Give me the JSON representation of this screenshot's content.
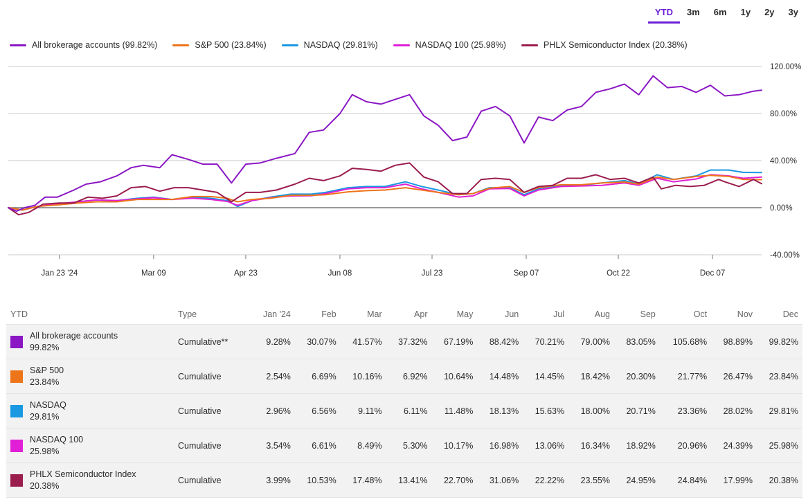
{
  "ranges": [
    "YTD",
    "3m",
    "6m",
    "1y",
    "2y",
    "3y"
  ],
  "active_range": "YTD",
  "legend": [
    {
      "label": "All brokerage accounts (99.82%)",
      "color": "#8b17c4"
    },
    {
      "label": "S&P 500 (23.84%)",
      "color": "#ee7419"
    },
    {
      "label": "NASDAQ (29.81%)",
      "color": "#1a98e2"
    },
    {
      "label": "NASDAQ 100 (25.98%)",
      "color": "#e11fd6"
    },
    {
      "label": "PHLX Semiconductor Index (20.38%)",
      "color": "#9b1d4e"
    }
  ],
  "chart_data": {
    "type": "line",
    "y_axis": {
      "min": -40,
      "max": 120,
      "ticks": [
        "120.00%",
        "80.00%",
        "40.00%",
        "0.00%",
        "-40.00%"
      ],
      "tick_values": [
        120,
        80,
        40,
        0,
        -40
      ]
    },
    "x_ticks": [
      "Jan 23 '24",
      "Mar 09",
      "Apr 23",
      "Jun 08",
      "Jul 23",
      "Sep 07",
      "Oct 22",
      "Dec 07"
    ],
    "x_tick_dates": [
      "2024-01-23",
      "2024-03-09",
      "2024-04-23",
      "2024-06-08",
      "2024-07-23",
      "2024-09-07",
      "2024-10-22",
      "2024-12-07"
    ],
    "x_range": [
      "2023-12-29",
      "2024-12-31"
    ],
    "grid": true,
    "legend_position": "top-left",
    "series": [
      {
        "name": "All brokerage accounts",
        "color": "#8b17c4",
        "points": [
          [
            "2023-12-29",
            0
          ],
          [
            "2024-01-02",
            -3
          ],
          [
            "2024-01-06",
            0
          ],
          [
            "2024-01-11",
            2
          ],
          [
            "2024-01-16",
            9
          ],
          [
            "2024-01-22",
            9
          ],
          [
            "2024-01-30",
            15
          ],
          [
            "2024-02-05",
            20
          ],
          [
            "2024-02-12",
            22
          ],
          [
            "2024-02-20",
            27
          ],
          [
            "2024-02-27",
            34
          ],
          [
            "2024-03-04",
            36
          ],
          [
            "2024-03-12",
            34
          ],
          [
            "2024-03-18",
            45
          ],
          [
            "2024-03-26",
            41
          ],
          [
            "2024-04-02",
            37
          ],
          [
            "2024-04-09",
            37
          ],
          [
            "2024-04-16",
            21
          ],
          [
            "2024-04-23",
            37
          ],
          [
            "2024-04-30",
            38
          ],
          [
            "2024-05-08",
            42
          ],
          [
            "2024-05-17",
            46
          ],
          [
            "2024-05-24",
            64
          ],
          [
            "2024-05-31",
            66
          ],
          [
            "2024-06-08",
            80
          ],
          [
            "2024-06-14",
            96
          ],
          [
            "2024-06-21",
            90
          ],
          [
            "2024-06-28",
            88
          ],
          [
            "2024-07-05",
            92
          ],
          [
            "2024-07-12",
            96
          ],
          [
            "2024-07-19",
            78
          ],
          [
            "2024-07-26",
            70
          ],
          [
            "2024-08-02",
            57
          ],
          [
            "2024-08-09",
            60
          ],
          [
            "2024-08-16",
            82
          ],
          [
            "2024-08-23",
            86
          ],
          [
            "2024-08-30",
            78
          ],
          [
            "2024-09-06",
            55
          ],
          [
            "2024-09-13",
            77
          ],
          [
            "2024-09-20",
            74
          ],
          [
            "2024-09-27",
            83
          ],
          [
            "2024-10-04",
            86
          ],
          [
            "2024-10-11",
            98
          ],
          [
            "2024-10-18",
            101
          ],
          [
            "2024-10-25",
            105
          ],
          [
            "2024-11-01",
            96
          ],
          [
            "2024-11-08",
            112
          ],
          [
            "2024-11-15",
            102
          ],
          [
            "2024-11-22",
            103
          ],
          [
            "2024-11-29",
            98
          ],
          [
            "2024-12-06",
            104
          ],
          [
            "2024-12-13",
            95
          ],
          [
            "2024-12-20",
            96
          ],
          [
            "2024-12-27",
            99
          ],
          [
            "2024-12-31",
            99.82
          ]
        ]
      },
      {
        "name": "S&P 500",
        "color": "#ee7419",
        "points": [
          [
            "2023-12-29",
            0
          ],
          [
            "2024-01-05",
            -2
          ],
          [
            "2024-01-12",
            1
          ],
          [
            "2024-01-23",
            2.5
          ],
          [
            "2024-02-01",
            4
          ],
          [
            "2024-02-10",
            5
          ],
          [
            "2024-02-20",
            5
          ],
          [
            "2024-03-01",
            7
          ],
          [
            "2024-03-09",
            7
          ],
          [
            "2024-03-18",
            7
          ],
          [
            "2024-03-28",
            9.5
          ],
          [
            "2024-04-06",
            9.5
          ],
          [
            "2024-04-14",
            8
          ],
          [
            "2024-04-19",
            5
          ],
          [
            "2024-04-26",
            7
          ],
          [
            "2024-05-05",
            8
          ],
          [
            "2024-05-15",
            10.5
          ],
          [
            "2024-05-25",
            10.5
          ],
          [
            "2024-06-01",
            11
          ],
          [
            "2024-06-12",
            13.5
          ],
          [
            "2024-06-21",
            14.5
          ],
          [
            "2024-06-30",
            15
          ],
          [
            "2024-07-10",
            17
          ],
          [
            "2024-07-18",
            15
          ],
          [
            "2024-07-26",
            13
          ],
          [
            "2024-08-05",
            11
          ],
          [
            "2024-08-12",
            12
          ],
          [
            "2024-08-20",
            16.5
          ],
          [
            "2024-08-30",
            18
          ],
          [
            "2024-09-06",
            13
          ],
          [
            "2024-09-13",
            17
          ],
          [
            "2024-09-24",
            19.5
          ],
          [
            "2024-10-04",
            19.5
          ],
          [
            "2024-10-14",
            21
          ],
          [
            "2024-10-25",
            21.8
          ],
          [
            "2024-11-01",
            20
          ],
          [
            "2024-11-10",
            26
          ],
          [
            "2024-11-18",
            24
          ],
          [
            "2024-11-29",
            26.5
          ],
          [
            "2024-12-06",
            27.5
          ],
          [
            "2024-12-15",
            26.5
          ],
          [
            "2024-12-22",
            24
          ],
          [
            "2024-12-31",
            23.84
          ]
        ]
      },
      {
        "name": "NASDAQ",
        "color": "#1a98e2",
        "points": [
          [
            "2023-12-29",
            0
          ],
          [
            "2024-01-05",
            -2
          ],
          [
            "2024-01-12",
            1
          ],
          [
            "2024-01-23",
            3
          ],
          [
            "2024-02-01",
            5
          ],
          [
            "2024-02-10",
            6.5
          ],
          [
            "2024-02-20",
            6
          ],
          [
            "2024-03-01",
            8
          ],
          [
            "2024-03-09",
            9
          ],
          [
            "2024-03-18",
            7
          ],
          [
            "2024-03-28",
            9
          ],
          [
            "2024-04-06",
            8
          ],
          [
            "2024-04-14",
            6
          ],
          [
            "2024-04-19",
            1
          ],
          [
            "2024-04-26",
            6
          ],
          [
            "2024-05-05",
            9
          ],
          [
            "2024-05-15",
            11.5
          ],
          [
            "2024-05-25",
            11.5
          ],
          [
            "2024-06-01",
            13
          ],
          [
            "2024-06-12",
            17
          ],
          [
            "2024-06-21",
            18
          ],
          [
            "2024-06-30",
            18
          ],
          [
            "2024-07-10",
            22
          ],
          [
            "2024-07-18",
            18
          ],
          [
            "2024-07-26",
            15
          ],
          [
            "2024-08-05",
            11
          ],
          [
            "2024-08-12",
            12
          ],
          [
            "2024-08-20",
            17
          ],
          [
            "2024-08-30",
            17
          ],
          [
            "2024-09-06",
            11
          ],
          [
            "2024-09-13",
            16
          ],
          [
            "2024-09-24",
            19
          ],
          [
            "2024-10-04",
            19
          ],
          [
            "2024-10-14",
            21
          ],
          [
            "2024-10-25",
            23
          ],
          [
            "2024-11-01",
            20
          ],
          [
            "2024-11-10",
            28
          ],
          [
            "2024-11-18",
            24
          ],
          [
            "2024-11-29",
            27
          ],
          [
            "2024-12-06",
            32
          ],
          [
            "2024-12-15",
            32
          ],
          [
            "2024-12-22",
            30
          ],
          [
            "2024-12-31",
            29.81
          ]
        ]
      },
      {
        "name": "NASDAQ 100",
        "color": "#e11fd6",
        "points": [
          [
            "2023-12-29",
            0
          ],
          [
            "2024-01-05",
            -2
          ],
          [
            "2024-01-12",
            1
          ],
          [
            "2024-01-23",
            3.5
          ],
          [
            "2024-02-01",
            5
          ],
          [
            "2024-02-10",
            6.6
          ],
          [
            "2024-02-20",
            6
          ],
          [
            "2024-03-01",
            7.5
          ],
          [
            "2024-03-09",
            8.5
          ],
          [
            "2024-03-18",
            7
          ],
          [
            "2024-03-28",
            8
          ],
          [
            "2024-04-06",
            7
          ],
          [
            "2024-04-14",
            5.3
          ],
          [
            "2024-04-19",
            2
          ],
          [
            "2024-04-26",
            6
          ],
          [
            "2024-05-05",
            8.5
          ],
          [
            "2024-05-15",
            10
          ],
          [
            "2024-05-25",
            10.2
          ],
          [
            "2024-06-01",
            12
          ],
          [
            "2024-06-12",
            16
          ],
          [
            "2024-06-21",
            17
          ],
          [
            "2024-06-30",
            17
          ],
          [
            "2024-07-10",
            20
          ],
          [
            "2024-07-18",
            16
          ],
          [
            "2024-07-26",
            13
          ],
          [
            "2024-08-05",
            9
          ],
          [
            "2024-08-12",
            10
          ],
          [
            "2024-08-20",
            16
          ],
          [
            "2024-08-30",
            16.3
          ],
          [
            "2024-09-06",
            10
          ],
          [
            "2024-09-13",
            15
          ],
          [
            "2024-09-24",
            18
          ],
          [
            "2024-10-04",
            18.5
          ],
          [
            "2024-10-14",
            19
          ],
          [
            "2024-10-25",
            21
          ],
          [
            "2024-11-01",
            19
          ],
          [
            "2024-11-10",
            25
          ],
          [
            "2024-11-18",
            22
          ],
          [
            "2024-11-29",
            24.4
          ],
          [
            "2024-12-06",
            28
          ],
          [
            "2024-12-15",
            27
          ],
          [
            "2024-12-22",
            25
          ],
          [
            "2024-12-31",
            25.98
          ]
        ]
      },
      {
        "name": "PHLX Semiconductor Index",
        "color": "#9b1d4e",
        "points": [
          [
            "2023-12-29",
            0
          ],
          [
            "2024-01-03",
            -6
          ],
          [
            "2024-01-08",
            -4
          ],
          [
            "2024-01-15",
            3
          ],
          [
            "2024-01-23",
            4
          ],
          [
            "2024-01-30",
            4
          ],
          [
            "2024-02-06",
            9
          ],
          [
            "2024-02-13",
            8
          ],
          [
            "2024-02-20",
            10
          ],
          [
            "2024-02-27",
            17
          ],
          [
            "2024-03-05",
            18
          ],
          [
            "2024-03-12",
            14
          ],
          [
            "2024-03-19",
            17
          ],
          [
            "2024-03-26",
            17
          ],
          [
            "2024-04-02",
            15
          ],
          [
            "2024-04-09",
            13
          ],
          [
            "2024-04-16",
            5
          ],
          [
            "2024-04-23",
            13
          ],
          [
            "2024-04-30",
            13
          ],
          [
            "2024-05-08",
            15
          ],
          [
            "2024-05-17",
            20
          ],
          [
            "2024-05-24",
            25
          ],
          [
            "2024-05-31",
            23
          ],
          [
            "2024-06-08",
            27
          ],
          [
            "2024-06-14",
            33.5
          ],
          [
            "2024-06-21",
            32.5
          ],
          [
            "2024-06-28",
            31
          ],
          [
            "2024-07-05",
            36
          ],
          [
            "2024-07-12",
            38
          ],
          [
            "2024-07-19",
            26
          ],
          [
            "2024-07-26",
            22
          ],
          [
            "2024-08-02",
            12
          ],
          [
            "2024-08-09",
            12
          ],
          [
            "2024-08-16",
            24
          ],
          [
            "2024-08-23",
            25
          ],
          [
            "2024-08-30",
            24
          ],
          [
            "2024-09-06",
            13
          ],
          [
            "2024-09-13",
            18
          ],
          [
            "2024-09-20",
            19
          ],
          [
            "2024-09-27",
            25
          ],
          [
            "2024-10-04",
            25
          ],
          [
            "2024-10-11",
            28
          ],
          [
            "2024-10-18",
            24
          ],
          [
            "2024-10-25",
            25
          ],
          [
            "2024-11-01",
            21
          ],
          [
            "2024-11-08",
            26
          ],
          [
            "2024-11-12",
            16
          ],
          [
            "2024-11-19",
            19
          ],
          [
            "2024-11-26",
            18
          ],
          [
            "2024-12-03",
            19
          ],
          [
            "2024-12-10",
            24
          ],
          [
            "2024-12-13",
            22
          ],
          [
            "2024-12-20",
            18
          ],
          [
            "2024-12-27",
            24
          ],
          [
            "2024-12-31",
            20.38
          ]
        ]
      }
    ]
  },
  "table": {
    "headers": [
      "YTD",
      "Type",
      "Jan '24",
      "Feb",
      "Mar",
      "Apr",
      "May",
      "Jun",
      "Jul",
      "Aug",
      "Sep",
      "Oct",
      "Nov",
      "Dec"
    ],
    "rows": [
      {
        "name": "All brokerage accounts",
        "pct": "99.82%",
        "color": "#8b17c4",
        "type": "Cumulative**",
        "values": [
          "9.28%",
          "30.07%",
          "41.57%",
          "37.32%",
          "67.19%",
          "88.42%",
          "70.21%",
          "79.00%",
          "83.05%",
          "105.68%",
          "98.89%",
          "99.82%"
        ]
      },
      {
        "name": "S&P 500",
        "pct": "23.84%",
        "color": "#ee7419",
        "type": "Cumulative",
        "values": [
          "2.54%",
          "6.69%",
          "10.16%",
          "6.92%",
          "10.64%",
          "14.48%",
          "14.45%",
          "18.42%",
          "20.30%",
          "21.77%",
          "26.47%",
          "23.84%"
        ]
      },
      {
        "name": "NASDAQ",
        "pct": "29.81%",
        "color": "#1a98e2",
        "type": "Cumulative",
        "values": [
          "2.96%",
          "6.56%",
          "9.11%",
          "6.11%",
          "11.48%",
          "18.13%",
          "15.63%",
          "18.00%",
          "20.71%",
          "23.36%",
          "28.02%",
          "29.81%"
        ]
      },
      {
        "name": "NASDAQ 100",
        "pct": "25.98%",
        "color": "#e11fd6",
        "type": "Cumulative",
        "values": [
          "3.54%",
          "6.61%",
          "8.49%",
          "5.30%",
          "10.17%",
          "16.98%",
          "13.06%",
          "16.34%",
          "18.92%",
          "20.96%",
          "24.39%",
          "25.98%"
        ]
      },
      {
        "name": "PHLX Semiconductor Index",
        "pct": "20.38%",
        "color": "#9b1d4e",
        "type": "Cumulative",
        "values": [
          "3.99%",
          "10.53%",
          "17.48%",
          "13.41%",
          "22.70%",
          "31.06%",
          "22.22%",
          "23.55%",
          "24.95%",
          "24.84%",
          "17.99%",
          "20.38%"
        ]
      }
    ]
  }
}
